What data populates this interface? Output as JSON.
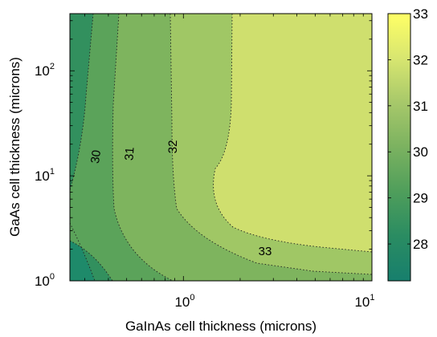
{
  "chart_data": {
    "type": "contour",
    "title": "",
    "xlabel": "GaInAs cell thickness (microns)",
    "ylabel": "GaAs cell thickness (microns)",
    "xscale": "log",
    "yscale": "log",
    "xlim": [
      0.25,
      10
    ],
    "ylim": [
      1,
      350
    ],
    "x_ticks": [
      {
        "value": 1,
        "base": "10",
        "exp": "0"
      },
      {
        "value": 10,
        "base": "10",
        "exp": "1"
      }
    ],
    "y_ticks": [
      {
        "value": 1,
        "base": "10",
        "exp": "0"
      },
      {
        "value": 10,
        "base": "10",
        "exp": "1"
      },
      {
        "value": 100,
        "base": "10",
        "exp": "2"
      }
    ],
    "levels": [
      28,
      29,
      30,
      31,
      32,
      33
    ],
    "contour_labels": [
      "30",
      "31",
      "32",
      "33"
    ],
    "colorbar": {
      "min": 27.2,
      "max": 33,
      "ticks": [
        "33",
        "32",
        "31",
        "30",
        "29",
        "28"
      ],
      "tick_values": [
        33,
        32,
        31,
        30,
        29,
        28
      ]
    },
    "colors": {
      "below_28": "#1e8a6a",
      "28_29": "#32905e",
      "29_30": "#5ba35a",
      "30_31": "#7eb45e",
      "31_32": "#a0c765",
      "32_33": "#cfdf6e",
      "above_33": "#ffff66",
      "colorbar_stops": [
        "#ffff66",
        "#d8e670",
        "#a7c86a",
        "#7bb260",
        "#4f9e5b",
        "#2a8c62",
        "#177f6d"
      ]
    },
    "grid": false,
    "legend": "colorbar-right"
  }
}
